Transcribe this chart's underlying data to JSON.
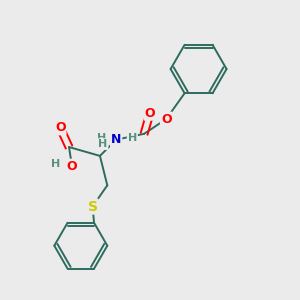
{
  "background_color": "#ebebeb",
  "bond_color": "#2d6b5e",
  "atom_colors": {
    "O": "#ff0000",
    "N": "#0000cc",
    "S": "#cccc00",
    "H": "#5a9080",
    "C": "#2d6b5e"
  },
  "figsize": [
    3.0,
    3.0
  ],
  "dpi": 100
}
